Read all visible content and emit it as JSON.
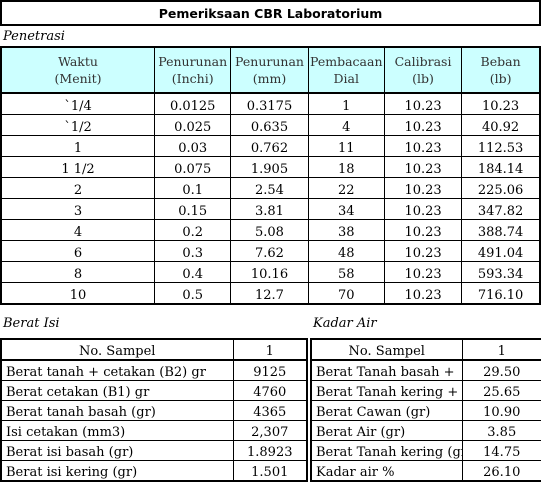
{
  "title": "Pemeriksaan CBR Laboratorium",
  "penetrasi": {
    "label": "Penetrasi",
    "headers": [
      [
        "Waktu",
        "(Menit)"
      ],
      [
        "Penurunan",
        "(Inchi)"
      ],
      [
        "Penurunan",
        "(mm)"
      ],
      [
        "Pembacaan",
        "Dial"
      ],
      [
        "Calibrasi",
        "(lb)"
      ],
      [
        "Beban",
        "(lb)"
      ]
    ],
    "rows": [
      [
        "`1/4",
        "0.0125",
        "0.3175",
        "1",
        "10.23",
        "10.23"
      ],
      [
        "`1/2",
        "0.025",
        "0.635",
        "4",
        "10.23",
        "40.92"
      ],
      [
        "1",
        "0.03",
        "0.762",
        "11",
        "10.23",
        "112.53"
      ],
      [
        "1 1/2",
        "0.075",
        "1.905",
        "18",
        "10.23",
        "184.14"
      ],
      [
        "2",
        "0.1",
        "2.54",
        "22",
        "10.23",
        "225.06"
      ],
      [
        "3",
        "0.15",
        "3.81",
        "34",
        "10.23",
        "347.82"
      ],
      [
        "4",
        "0.2",
        "5.08",
        "38",
        "10.23",
        "388.74"
      ],
      [
        "6",
        "0.3",
        "7.62",
        "48",
        "10.23",
        "491.04"
      ],
      [
        "8",
        "0.4",
        "10.16",
        "58",
        "10.23",
        "593.34"
      ],
      [
        "10",
        "0.5",
        "12.7",
        "70",
        "10.23",
        "716.10"
      ]
    ]
  },
  "berat_isi": {
    "label": "Berat Isi",
    "header": [
      "No. Sampel",
      "1"
    ],
    "rows": [
      [
        "Berat tanah + cetakan (B2) gr",
        "9125"
      ],
      [
        "Berat cetakan (B1) gr",
        "4760"
      ],
      [
        "Berat tanah basah (gr)",
        "4365"
      ],
      [
        "Isi cetakan (mm3)",
        "2,307"
      ],
      [
        "Berat isi basah (gr)",
        "1.8923"
      ],
      [
        "Berat isi kering (gr)",
        "1.501"
      ]
    ]
  },
  "kadar_air": {
    "label": "Kadar Air",
    "header": [
      "No. Sampel",
      "1"
    ],
    "rows": [
      [
        "Berat Tanah basah +",
        "29.50"
      ],
      [
        "Berat Tanah kering +",
        "25.65"
      ],
      [
        "Berat Cawan (gr)",
        "10.90"
      ],
      [
        "Berat Air (gr)",
        "3.85"
      ],
      [
        "Berat Tanah kering (gr)",
        "14.75"
      ],
      [
        "Kadar air %",
        "26.10"
      ]
    ]
  }
}
